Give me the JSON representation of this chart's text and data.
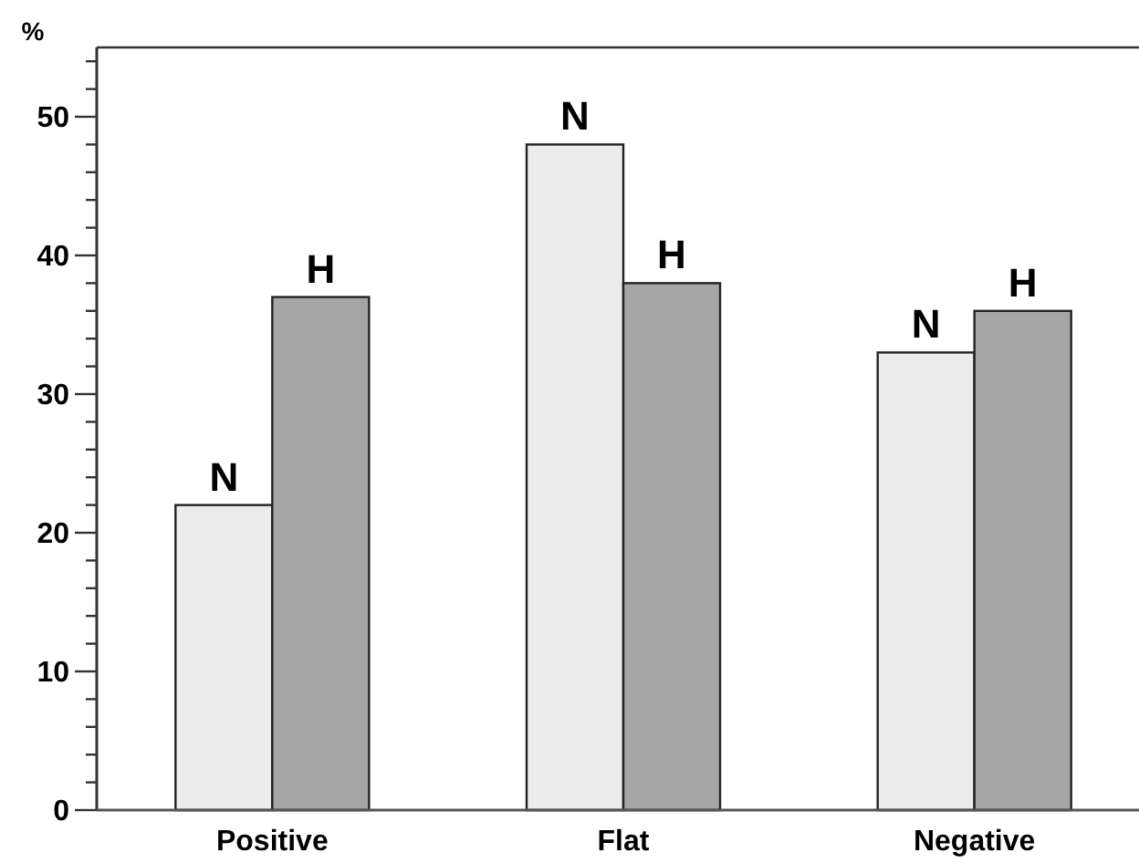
{
  "chart_data": {
    "type": "bar",
    "ylabel": "%",
    "categories": [
      "Positive",
      "Flat",
      "Negative"
    ],
    "series": [
      {
        "name": "N",
        "color": "#ececec",
        "values": [
          22,
          48,
          33
        ]
      },
      {
        "name": "H",
        "color": "#a6a6a6",
        "values": [
          37,
          38,
          36
        ]
      }
    ],
    "ylim": [
      0,
      55
    ],
    "yticks": [
      0,
      {
        "value": 2,
        "label": null
      },
      {
        "value": 4,
        "label": null
      },
      {
        "value": 6,
        "label": null
      },
      {
        "value": 8,
        "label": null
      },
      10,
      {
        "value": 12,
        "label": null
      },
      {
        "value": 14,
        "label": null
      },
      {
        "value": 16,
        "label": null
      },
      {
        "value": 18,
        "label": null
      },
      20,
      {
        "value": 22,
        "label": null
      },
      {
        "value": 24,
        "label": null
      },
      {
        "value": 26,
        "label": null
      },
      {
        "value": 28,
        "label": null
      },
      30,
      {
        "value": 32,
        "label": null
      },
      {
        "value": 34,
        "label": null
      },
      {
        "value": 36,
        "label": null
      },
      {
        "value": 38,
        "label": null
      },
      40,
      {
        "value": 42,
        "label": null
      },
      {
        "value": 44,
        "label": null
      },
      {
        "value": 46,
        "label": null
      },
      {
        "value": 48,
        "label": null
      },
      50,
      {
        "value": 52,
        "label": null
      },
      {
        "value": 54,
        "label": null
      }
    ],
    "grid": false,
    "legend": false
  }
}
